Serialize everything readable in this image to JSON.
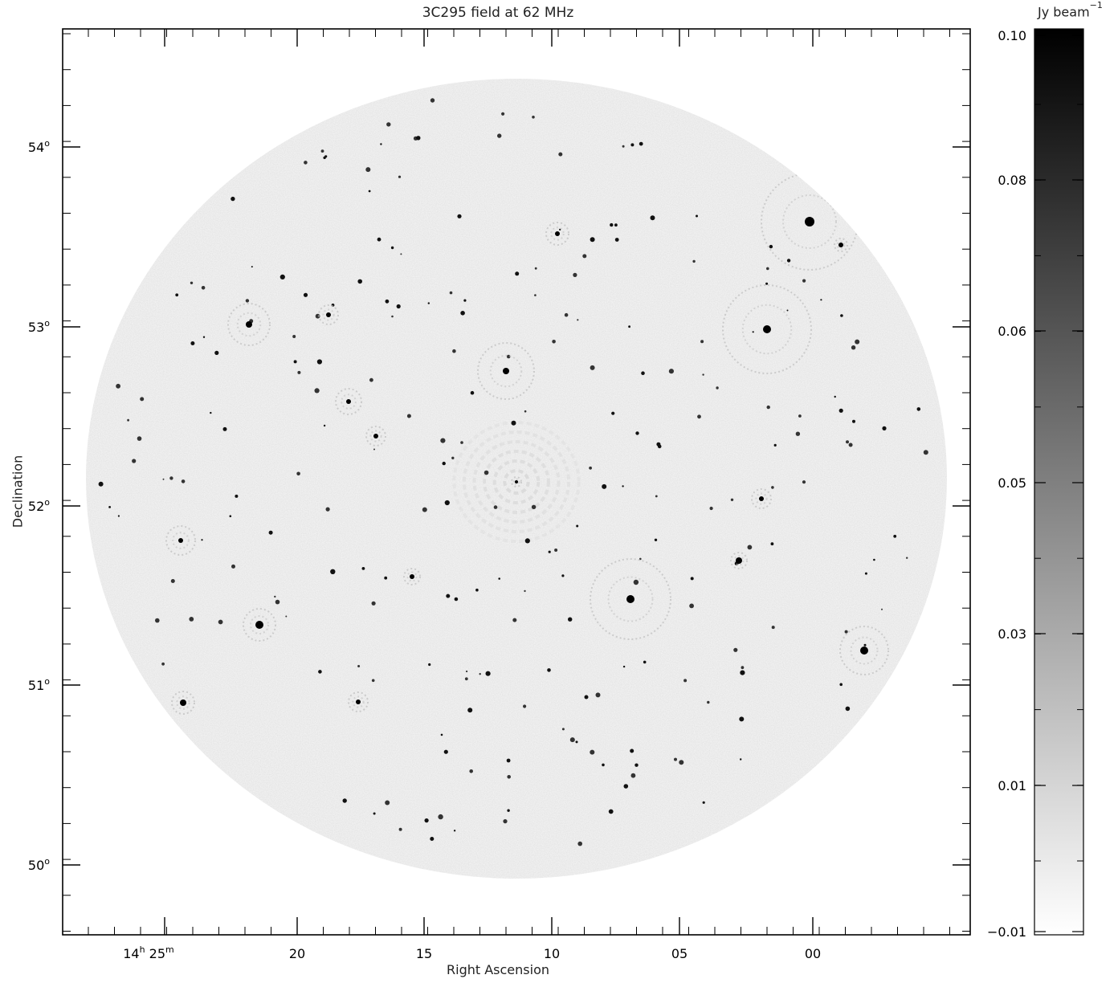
{
  "figure": {
    "title": "3C295 field at 62 MHz",
    "xlabel": "Right Ascension",
    "ylabel": "Declination"
  },
  "axes": {
    "dec_ticks": [
      {
        "deg": "54",
        "sym": "o"
      },
      {
        "deg": "53",
        "sym": "o"
      },
      {
        "deg": "52",
        "sym": "o"
      },
      {
        "deg": "51",
        "sym": "o"
      },
      {
        "deg": "50",
        "sym": "o"
      }
    ],
    "ra_ticks": [
      {
        "h": "14",
        "hsym": "h",
        "m": "25",
        "msym": "m"
      },
      {
        "m": "20"
      },
      {
        "m": "15"
      },
      {
        "m": "10"
      },
      {
        "m": "05"
      },
      {
        "m": "00"
      }
    ]
  },
  "colorbar": {
    "unit": "Jy beam",
    "unit_exp": "−1",
    "ticks": [
      "0.10",
      "0.08",
      "0.06",
      "0.05",
      "0.03",
      "0.01",
      "−0.01"
    ],
    "color_high": "#000000",
    "color_low": "#ffffff"
  }
}
